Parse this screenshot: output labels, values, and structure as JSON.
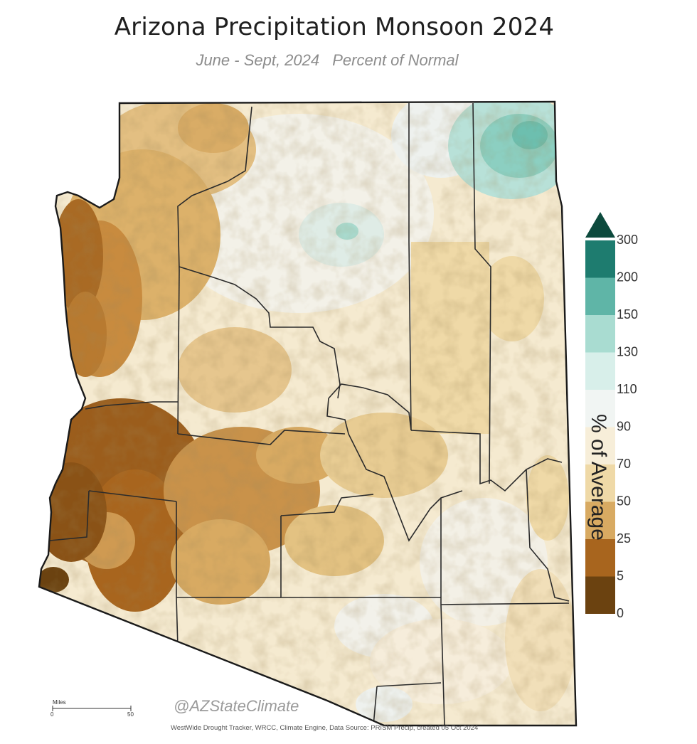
{
  "title": "Arizona Precipitation Monsoon 2024",
  "subtitle": {
    "period": "June - Sept, 2024",
    "measure": "Percent of Normal"
  },
  "legend": {
    "title": "% of Average",
    "breaks": [
      "300",
      "200",
      "150",
      "130",
      "110",
      "90",
      "70",
      "50",
      "25",
      "5",
      "0"
    ],
    "colors": [
      "#1e7c6f",
      "#5fb5a7",
      "#a9dcd1",
      "#d8efea",
      "#f1f5f3",
      "#f7eed9",
      "#efd9a7",
      "#d8aa62",
      "#a8651e",
      "#6b4210"
    ],
    "overflow_color": "#0d4a3d"
  },
  "scale_bar": {
    "unit": "Miles",
    "start": "0",
    "end": "50"
  },
  "watermark": "@AZStateClimate",
  "credits": "WestWide Drought Tracker, WRCC, Climate Engine, Data Source: PRISM Precip, created 05 Oct 2024",
  "colors": {
    "border": "#1a1a1a",
    "county_line": "#2b2b2b"
  }
}
